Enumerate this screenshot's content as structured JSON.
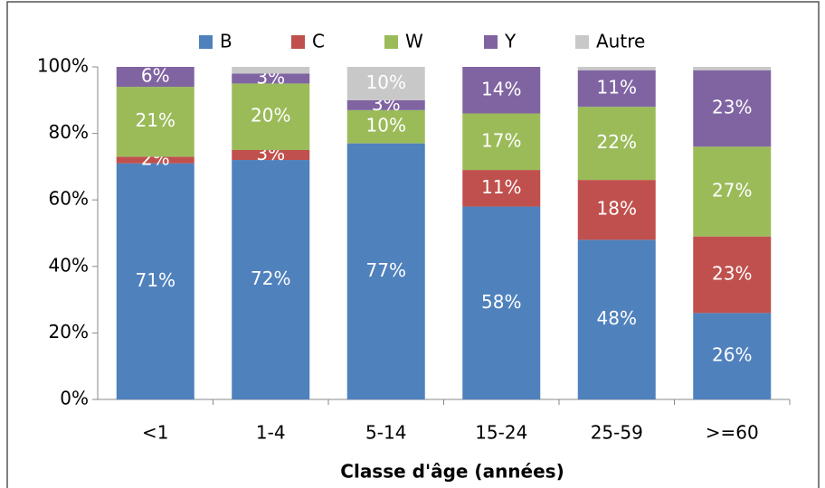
{
  "chart_data": {
    "type": "stacked_bar",
    "x_label": "Classe d'âge (années)",
    "categories": [
      "<1",
      "1-4",
      "5-14",
      "15-24",
      "25-59",
      ">=60"
    ],
    "series": [
      {
        "name": "B",
        "color": "#4f81bd",
        "values": [
          71,
          72,
          77,
          58,
          48,
          26
        ],
        "value_labels": [
          "71%",
          "72%",
          "77%",
          "58%",
          "48%",
          "26%"
        ]
      },
      {
        "name": "C",
        "color": "#c0504d",
        "values": [
          2,
          3,
          0,
          11,
          18,
          23
        ],
        "value_labels": [
          "2%",
          "3%",
          null,
          "11%",
          "18%",
          "23%"
        ]
      },
      {
        "name": "W",
        "color": "#9bbb59",
        "values": [
          21,
          20,
          10,
          17,
          22,
          27
        ],
        "value_labels": [
          "21%",
          "20%",
          "10%",
          "17%",
          "22%",
          "27%"
        ]
      },
      {
        "name": "Y",
        "color": "#8064a2",
        "values": [
          6,
          3,
          3,
          14,
          11,
          23
        ],
        "value_labels": [
          "6%",
          "3%",
          "3%",
          "14%",
          "11%",
          "23%"
        ]
      },
      {
        "name": "Autre",
        "color": "#c8c8c8",
        "values": [
          0,
          2,
          10,
          0,
          1,
          1
        ],
        "value_labels": [
          null,
          null,
          "10%",
          null,
          null,
          null
        ]
      }
    ],
    "ylim": [
      0,
      100
    ],
    "yticks": [
      {
        "value": 0,
        "label": "0%"
      },
      {
        "value": 20,
        "label": "20%"
      },
      {
        "value": 40,
        "label": "40%"
      },
      {
        "value": 60,
        "label": "60%"
      },
      {
        "value": 80,
        "label": "80%"
      },
      {
        "value": 100,
        "label": "100%"
      }
    ],
    "legend": "top"
  }
}
